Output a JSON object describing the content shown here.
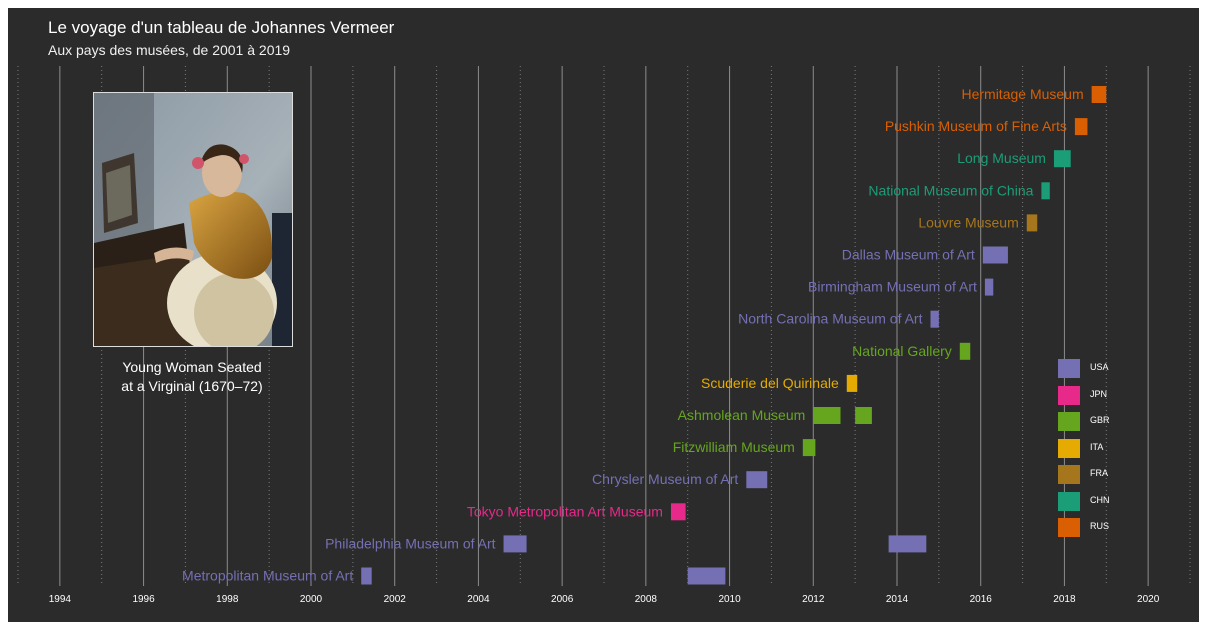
{
  "chart_data": {
    "type": "bar",
    "orientation": "horizontal-timeline",
    "title": "Le voyage d'un tableau de Johannes Vermeer",
    "subtitle": "Aux pays des musées, de 2001 à 2019",
    "xlim": [
      1993,
      2021
    ],
    "x_ticks": [
      1994,
      1996,
      1998,
      2000,
      2002,
      2004,
      2006,
      2008,
      2010,
      2012,
      2014,
      2016,
      2018,
      2020
    ],
    "grid": true,
    "legend_position": "bottom-right",
    "countries": [
      {
        "code": "USA",
        "color": "#7570b3"
      },
      {
        "code": "JPN",
        "color": "#e7298a"
      },
      {
        "code": "GBR",
        "color": "#66a61e"
      },
      {
        "code": "ITA",
        "color": "#e6ab02"
      },
      {
        "code": "FRA",
        "color": "#a6761d"
      },
      {
        "code": "CHN",
        "color": "#1b9e77"
      },
      {
        "code": "RUS",
        "color": "#d95f02"
      }
    ],
    "museums": [
      {
        "name": "Metropolitan Museum of Art",
        "country": "USA",
        "periods": [
          [
            2001.2,
            2001.45
          ],
          [
            2009.0,
            2009.9
          ]
        ]
      },
      {
        "name": "Philadelphia Museum of Art",
        "country": "USA",
        "periods": [
          [
            2004.6,
            2005.15
          ],
          [
            2013.8,
            2014.7
          ]
        ]
      },
      {
        "name": "Tokyo Metropolitan Art Museum",
        "country": "JPN",
        "periods": [
          [
            2008.6,
            2008.95
          ]
        ]
      },
      {
        "name": "Chrysler Museum of Art",
        "country": "USA",
        "periods": [
          [
            2010.4,
            2010.9
          ]
        ]
      },
      {
        "name": "Fitzwilliam Museum",
        "country": "GBR",
        "periods": [
          [
            2011.75,
            2012.05
          ]
        ]
      },
      {
        "name": "Ashmolean Museum",
        "country": "GBR",
        "periods": [
          [
            2012.0,
            2012.65
          ],
          [
            2013.0,
            2013.4
          ]
        ]
      },
      {
        "name": "Scuderie del Quirinale",
        "country": "ITA",
        "periods": [
          [
            2012.8,
            2013.05
          ]
        ]
      },
      {
        "name": "National Gallery",
        "country": "GBR",
        "periods": [
          [
            2015.5,
            2015.75
          ]
        ]
      },
      {
        "name": "North Carolina Museum of Art",
        "country": "USA",
        "periods": [
          [
            2014.8,
            2015.0
          ]
        ]
      },
      {
        "name": "Birmingham Museum of Art",
        "country": "USA",
        "periods": [
          [
            2016.1,
            2016.3
          ]
        ]
      },
      {
        "name": "Dallas Museum of Art",
        "country": "USA",
        "periods": [
          [
            2016.05,
            2016.65
          ]
        ]
      },
      {
        "name": "Louvre Museum",
        "country": "FRA",
        "periods": [
          [
            2017.1,
            2017.35
          ]
        ]
      },
      {
        "name": "National Museum of China",
        "country": "CHN",
        "periods": [
          [
            2017.45,
            2017.65
          ]
        ]
      },
      {
        "name": "Long Museum",
        "country": "CHN",
        "periods": [
          [
            2017.75,
            2018.15
          ]
        ]
      },
      {
        "name": "Pushkin Museum of Fine Arts",
        "country": "RUS",
        "periods": [
          [
            2018.25,
            2018.55
          ]
        ]
      },
      {
        "name": "Hermitage Museum",
        "country": "RUS",
        "periods": [
          [
            2018.65,
            2019.0
          ]
        ]
      }
    ]
  },
  "painting": {
    "caption_line1": "Young Woman Seated",
    "caption_line2": "at a Virginal (1670–72)"
  }
}
